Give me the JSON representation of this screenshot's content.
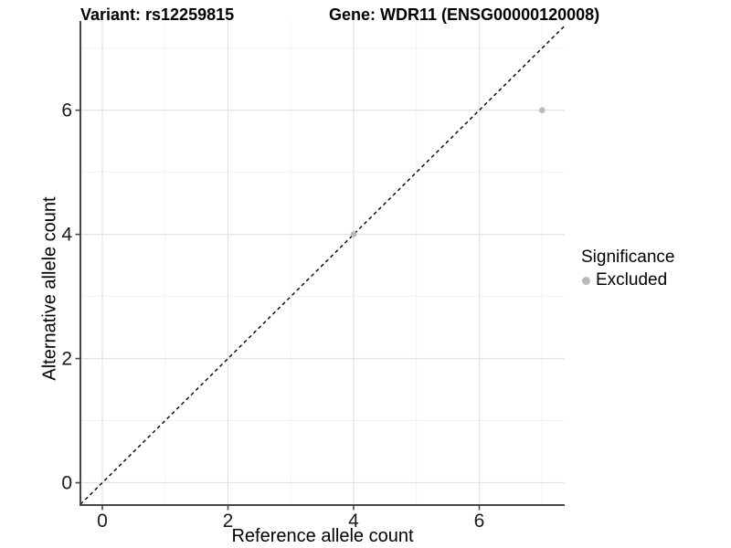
{
  "header": {
    "variant_title": "Variant: rs12259815",
    "gene_title": "Gene: WDR11 (ENSG00000120008)"
  },
  "axes": {
    "x_label": "Reference allele count",
    "y_label": "Alternative allele count"
  },
  "legend": {
    "title": "Significance",
    "entries": [
      {
        "label": "Excluded",
        "color": "#b9b9b9"
      }
    ]
  },
  "chart_data": {
    "type": "scatter",
    "title": "Variant: rs12259815   Gene: WDR11 (ENSG00000120008)",
    "xlabel": "Reference allele count",
    "ylabel": "Alternative allele count",
    "xlim": [
      -0.35,
      7.35
    ],
    "ylim": [
      -0.35,
      7.35
    ],
    "x_ticks": [
      0,
      2,
      4,
      6
    ],
    "y_ticks": [
      0,
      2,
      4,
      6
    ],
    "x_minor_gridlines": [
      1,
      3,
      5,
      7
    ],
    "y_minor_gridlines": [
      1,
      3,
      5,
      7
    ],
    "grid": "major_and_minor",
    "series": [
      {
        "name": "Excluded",
        "color": "#b9b9b9",
        "points": [
          {
            "x": 4,
            "y": 4
          },
          {
            "x": 7,
            "y": 6
          }
        ]
      }
    ],
    "reference_line": {
      "type": "identity_y_equals_x",
      "style": "dashed",
      "color": "#000000"
    },
    "legend_title": "Significance",
    "legend_labels": [
      "Excluded"
    ],
    "legend_position": "right"
  },
  "colors": {
    "point_excluded": "#b9b9b9",
    "grid_major": "#e4e4e4",
    "grid_minor": "#f2f2f2",
    "axis_line": "#464646",
    "tick_text": "#1a1a1a",
    "reference_line": "#000000"
  }
}
